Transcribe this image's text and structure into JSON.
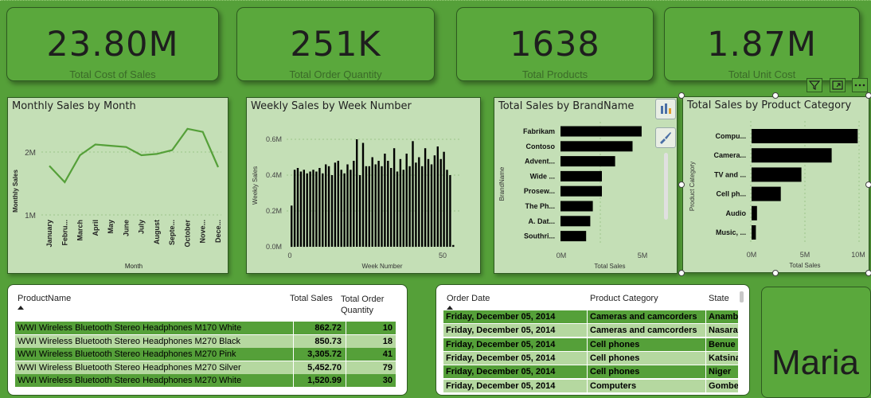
{
  "kpis": [
    {
      "value": "23.80M",
      "label": "Total Cost of Sales"
    },
    {
      "value": "251K",
      "label": "Total Order Quantity"
    },
    {
      "value": "1638",
      "label": "Total Products"
    },
    {
      "value": "1.87M",
      "label": "Total Unit Cost"
    }
  ],
  "monthly": {
    "title": "Monthly Sales by Month",
    "ylabel": "Monthly Sales",
    "xlabel": "Month",
    "yticks": [
      "2M",
      "1M"
    ],
    "months": [
      "January",
      "Febru...",
      "March",
      "April",
      "May",
      "June",
      "July",
      "August",
      "Septe...",
      "October",
      "Nove...",
      "Dece..."
    ]
  },
  "weekly": {
    "title": "Weekly Sales by Week Number",
    "ylabel": "Weekly Sales",
    "xlabel": "Week Number",
    "yticks": [
      "0.6M",
      "0.4M",
      "0.2M",
      "0.0M"
    ],
    "xticks": [
      "0",
      "50"
    ]
  },
  "brand": {
    "title": "Total Sales by BrandName",
    "ylabel": "BrandName",
    "xlabel": "Total Sales",
    "xticks": [
      "0M",
      "5M"
    ]
  },
  "category": {
    "title": "Total Sales by Product Category",
    "ylabel": "Product Category",
    "xlabel": "Total Sales",
    "xticks": [
      "0M",
      "5M",
      "10M"
    ]
  },
  "chart_data": [
    {
      "type": "line",
      "title": "Monthly Sales by Month",
      "xlabel": "Month",
      "ylabel": "Monthly Sales",
      "categories": [
        "January",
        "February",
        "March",
        "April",
        "May",
        "June",
        "July",
        "August",
        "September",
        "October",
        "November",
        "December"
      ],
      "values": [
        1.78,
        1.52,
        1.95,
        2.12,
        2.1,
        2.08,
        1.95,
        1.97,
        2.03,
        2.37,
        2.32,
        1.76
      ],
      "ylim": [
        0.9,
        2.6
      ],
      "color": "#55a039"
    },
    {
      "type": "bar",
      "title": "Weekly Sales by Week Number",
      "xlabel": "Week Number",
      "ylabel": "Weekly Sales",
      "x": [
        1,
        2,
        3,
        4,
        5,
        6,
        7,
        8,
        9,
        10,
        11,
        12,
        13,
        14,
        15,
        16,
        17,
        18,
        19,
        20,
        21,
        22,
        23,
        24,
        25,
        26,
        27,
        28,
        29,
        30,
        31,
        32,
        33,
        34,
        35,
        36,
        37,
        38,
        39,
        40,
        41,
        42,
        43,
        44,
        45,
        46,
        47,
        48,
        49,
        50,
        51,
        52,
        53
      ],
      "values": [
        0.23,
        0.43,
        0.44,
        0.42,
        0.43,
        0.41,
        0.42,
        0.43,
        0.42,
        0.44,
        0.41,
        0.46,
        0.45,
        0.4,
        0.47,
        0.48,
        0.43,
        0.41,
        0.46,
        0.43,
        0.48,
        0.6,
        0.4,
        0.58,
        0.45,
        0.45,
        0.5,
        0.46,
        0.48,
        0.45,
        0.52,
        0.48,
        0.44,
        0.55,
        0.42,
        0.49,
        0.43,
        0.52,
        0.45,
        0.59,
        0.47,
        0.5,
        0.45,
        0.55,
        0.49,
        0.46,
        0.51,
        0.56,
        0.49,
        0.53,
        0.43,
        0.4,
        0.01
      ],
      "ylim": [
        0,
        0.65
      ],
      "color": "#000000"
    },
    {
      "type": "bar",
      "orientation": "horizontal",
      "title": "Total Sales by BrandName",
      "categories": [
        "Fabrikam",
        "Contoso",
        "Advent...",
        "Wide ...",
        "Prosew...",
        "The Ph...",
        "A. Dat...",
        "Southri..."
      ],
      "values": [
        4.9,
        4.35,
        3.3,
        2.5,
        2.5,
        1.95,
        1.8,
        1.55
      ],
      "xlim": [
        0,
        5.5
      ],
      "color": "#000000"
    },
    {
      "type": "bar",
      "orientation": "horizontal",
      "title": "Total Sales by Product Category",
      "categories": [
        "Compu...",
        "Camera...",
        "TV and ...",
        "Cell ph...",
        "Audio",
        "Music, ..."
      ],
      "values": [
        9.8,
        7.4,
        4.6,
        2.7,
        0.5,
        0.4
      ],
      "xlim": [
        0,
        10.5
      ],
      "color": "#000000"
    }
  ],
  "products_table": {
    "headers": [
      "ProductName",
      "Total Sales",
      "Total Order Quantity"
    ],
    "rows": [
      [
        "WWI Wireless Bluetooth Stereo Headphones M170 White",
        "862.72",
        "10"
      ],
      [
        "WWI Wireless Bluetooth Stereo Headphones M270 Black",
        "850.73",
        "18"
      ],
      [
        "WWI Wireless Bluetooth Stereo Headphones M270 Pink",
        "3,305.72",
        "41"
      ],
      [
        "WWI Wireless Bluetooth Stereo Headphones M270 Silver",
        "5,452.70",
        "79"
      ],
      [
        "WWI Wireless Bluetooth Stereo Headphones M270 White",
        "1,520.99",
        "30"
      ]
    ]
  },
  "orders_table": {
    "headers": [
      "Order Date",
      "Product Category",
      "State"
    ],
    "rows": [
      [
        "Friday, December 05, 2014",
        "Cameras and camcorders",
        "Anamb"
      ],
      [
        "Friday, December 05, 2014",
        "Cameras and camcorders",
        "Nasara"
      ],
      [
        "Friday, December 05, 2014",
        "Cell phones",
        "Benue"
      ],
      [
        "Friday, December 05, 2014",
        "Cell phones",
        "Katsina"
      ],
      [
        "Friday, December 05, 2014",
        "Cell phones",
        "Niger"
      ],
      [
        "Friday, December 05, 2014",
        "Computers",
        "Gombe"
      ]
    ]
  },
  "name_card": {
    "text": "Maria"
  },
  "icons": [
    "filter-icon",
    "focus-mode-icon",
    "more-options-icon",
    "bar-chart-format-icon",
    "paint-brush-icon"
  ]
}
